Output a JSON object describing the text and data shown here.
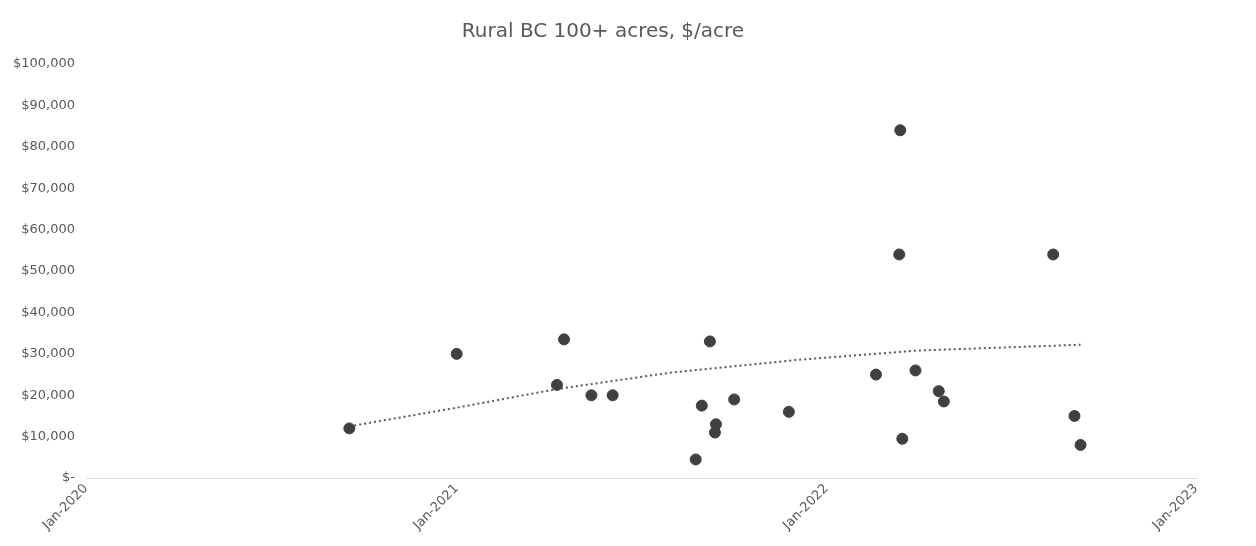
{
  "chart_data": {
    "type": "scatter",
    "title": "Rural BC 100+ acres, $/acre",
    "xlim": [
      "2020-01-01",
      "2023-01-01"
    ],
    "xticks": [
      {
        "value": "2020-01",
        "label": "Jan-2020"
      },
      {
        "value": "2021-01",
        "label": "Jan-2021"
      },
      {
        "value": "2022-01",
        "label": "Jan-2022"
      },
      {
        "value": "2023-01",
        "label": "Jan-2023"
      }
    ],
    "ylim": [
      0,
      100000
    ],
    "yticks": [
      {
        "value": 0,
        "label": "$-"
      },
      {
        "value": 10000,
        "label": "$10,000"
      },
      {
        "value": 20000,
        "label": "$20,000"
      },
      {
        "value": 30000,
        "label": "$30,000"
      },
      {
        "value": 40000,
        "label": "$40,000"
      },
      {
        "value": 50000,
        "label": "$50,000"
      },
      {
        "value": 60000,
        "label": "$60,000"
      },
      {
        "value": 70000,
        "label": "$70,000"
      },
      {
        "value": 80000,
        "label": "$80,000"
      },
      {
        "value": 90000,
        "label": "$90,000"
      },
      {
        "value": 100000,
        "label": "$100,000"
      }
    ],
    "grid": false,
    "legend": false,
    "marker": "circle",
    "series": [
      {
        "type": "scatter",
        "color": "#404040",
        "x": [
          "2020-09-17",
          "2021-01-01",
          "2021-04-17",
          "2021-04-10",
          "2021-05-14",
          "2021-06-04",
          "2021-09-08",
          "2021-08-31",
          "2021-10-02",
          "2021-09-14",
          "2021-09-13",
          "2021-08-25",
          "2021-11-25",
          "2022-02-19",
          "2022-03-15",
          "2022-03-14",
          "2022-03-17",
          "2022-03-30",
          "2022-04-22",
          "2022-04-27",
          "2022-08-13",
          "2022-09-03",
          "2022-09-09"
        ],
        "values": [
          12000,
          30000,
          33500,
          22500,
          20000,
          20000,
          33000,
          17500,
          19000,
          13000,
          11000,
          4500,
          16000,
          25000,
          84000,
          54000,
          9500,
          26000,
          21000,
          18500,
          54000,
          15000,
          8000
        ]
      },
      {
        "type": "line",
        "color": "#595959",
        "line_style": "dotted",
        "marker": "none",
        "x": [
          "2020-09-17",
          "2021-01-01",
          "2021-04-10",
          "2021-08-01",
          "2021-12-01",
          "2022-04-01",
          "2022-09-09"
        ],
        "values": [
          12500,
          17000,
          21500,
          25500,
          28500,
          30800,
          32200
        ]
      }
    ]
  }
}
